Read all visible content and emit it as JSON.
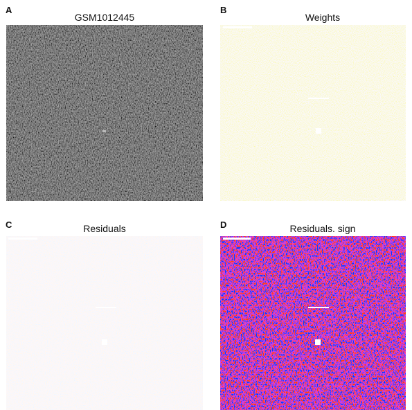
{
  "panels": [
    {
      "letter": "A",
      "title": "GSM1012445"
    },
    {
      "letter": "B",
      "title": "Weights"
    },
    {
      "letter": "C",
      "title": "Residuals"
    },
    {
      "letter": "D",
      "title": "Residuals. sign"
    }
  ]
}
